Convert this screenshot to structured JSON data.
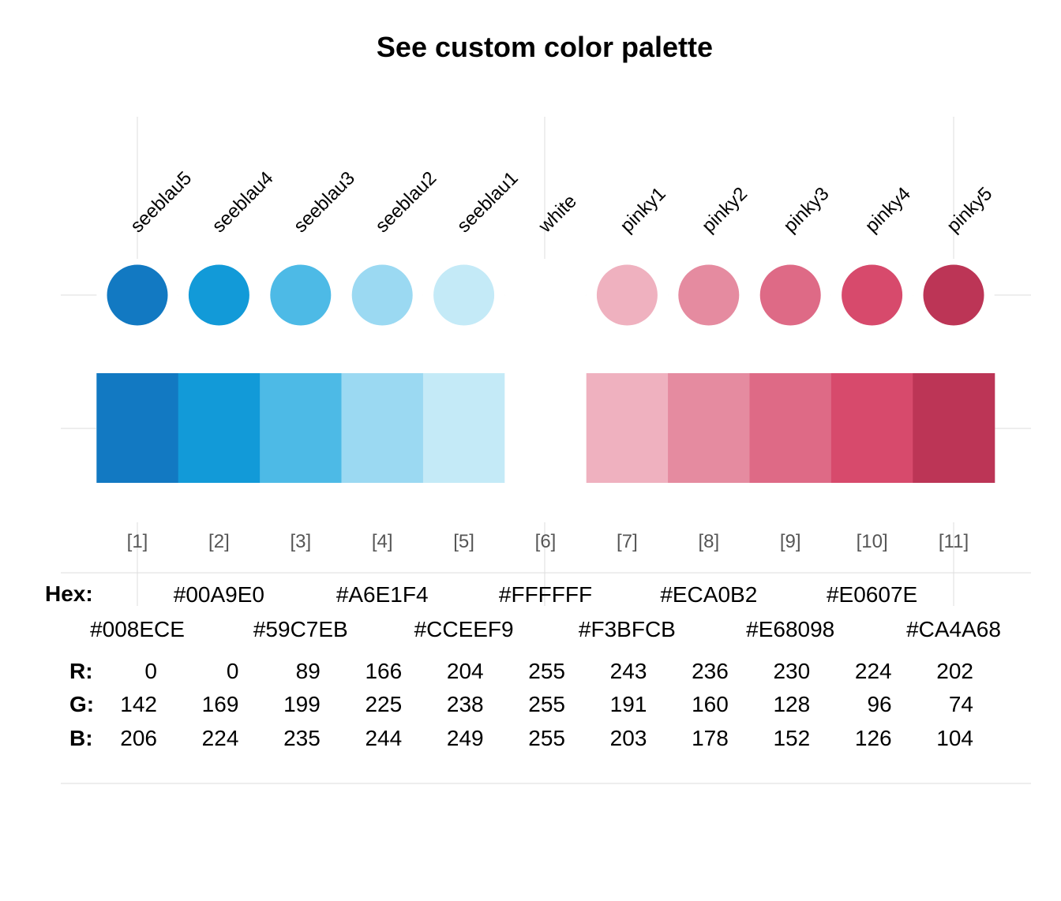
{
  "chart_data": {
    "type": "table",
    "title": "See custom color palette",
    "row_labels": {
      "hex": "Hex:",
      "r": "R:",
      "g": "G:",
      "b": "B:"
    },
    "colors": [
      {
        "name": "seeblau5",
        "index": "[1]",
        "hex": "#008ECE",
        "r": 0,
        "g": 142,
        "b": 206
      },
      {
        "name": "seeblau4",
        "index": "[2]",
        "hex": "#00A9E0",
        "r": 0,
        "g": 169,
        "b": 224
      },
      {
        "name": "seeblau3",
        "index": "[3]",
        "hex": "#59C7EB",
        "r": 89,
        "g": 199,
        "b": 235
      },
      {
        "name": "seeblau2",
        "index": "[4]",
        "hex": "#A6E1F4",
        "r": 166,
        "g": 225,
        "b": 244
      },
      {
        "name": "seeblau1",
        "index": "[5]",
        "hex": "#CCEEF9",
        "r": 204,
        "g": 238,
        "b": 249
      },
      {
        "name": "white",
        "index": "[6]",
        "hex": "#FFFFFF",
        "r": 255,
        "g": 255,
        "b": 255
      },
      {
        "name": "pinky1",
        "index": "[7]",
        "hex": "#F3BFCB",
        "r": 243,
        "g": 191,
        "b": 203
      },
      {
        "name": "pinky2",
        "index": "[8]",
        "hex": "#ECA0B2",
        "r": 236,
        "g": 160,
        "b": 178
      },
      {
        "name": "pinky3",
        "index": "[9]",
        "hex": "#E68098",
        "r": 230,
        "g": 128,
        "b": 152
      },
      {
        "name": "pinky4",
        "index": "[10]",
        "hex": "#E0607E",
        "r": 224,
        "g": 96,
        "b": 126
      },
      {
        "name": "pinky5",
        "index": "[11]",
        "hex": "#CA4A68",
        "r": 202,
        "g": 74,
        "b": 104
      }
    ],
    "display_colors": [
      "#1279c2",
      "#129ad8",
      "#4dbae6",
      "#9bd9f2",
      "#c4eaf7",
      "#ffffff",
      "#efb1bf",
      "#e58ba0",
      "#de6a86",
      "#d74a6c",
      "#bc3556"
    ],
    "grid_color": "#dedede"
  }
}
